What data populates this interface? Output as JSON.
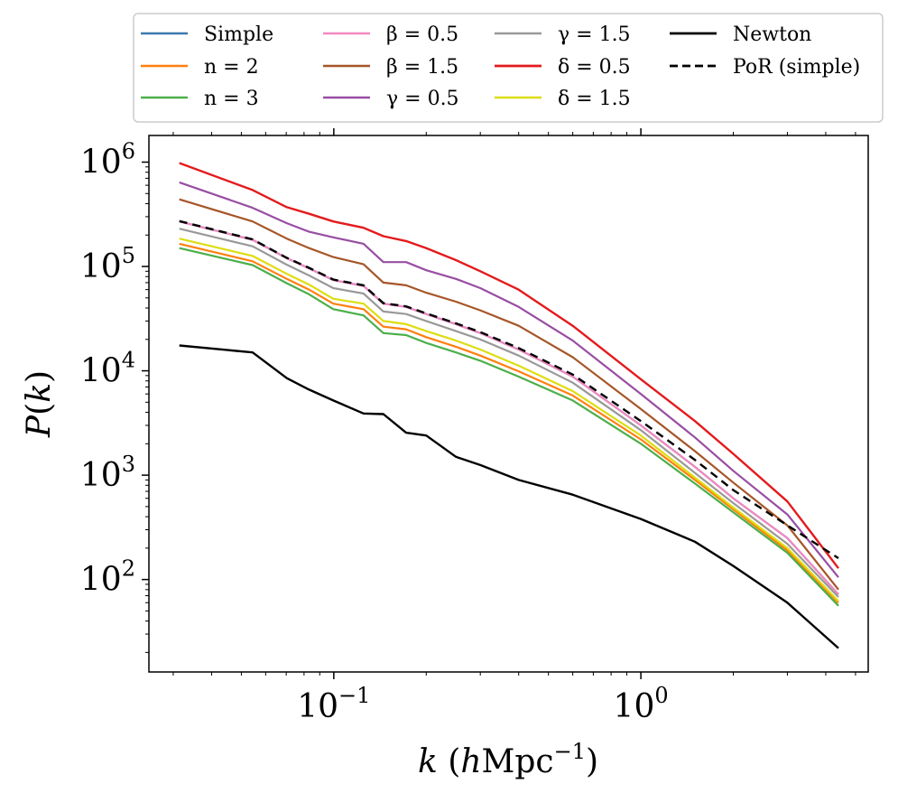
{
  "chart_data": {
    "type": "line",
    "xlabel": "k (hMpc⁻¹)",
    "ylabel": "P(k)",
    "x_scale": "log",
    "y_scale": "log",
    "xlim": [
      0.025,
      5.5
    ],
    "ylim": [
      13,
      1800000
    ],
    "grid": false,
    "legend_position": "top",
    "x_ticks": [
      {
        "value": 0.1,
        "base": "10",
        "exp": "−1"
      },
      {
        "value": 1,
        "base": "10",
        "exp": "0"
      }
    ],
    "y_ticks": [
      {
        "value": 100,
        "base": "10",
        "exp": "2"
      },
      {
        "value": 1000,
        "base": "10",
        "exp": "3"
      },
      {
        "value": 10000,
        "base": "10",
        "exp": "4"
      },
      {
        "value": 100000,
        "base": "10",
        "exp": "5"
      },
      {
        "value": 1000000,
        "base": "10",
        "exp": "6"
      }
    ],
    "x": [
      0.0314,
      0.0544,
      0.0703,
      0.0831,
      0.0996,
      0.125,
      0.145,
      0.172,
      0.2,
      0.25,
      0.3,
      0.4,
      0.6,
      1.0,
      1.5,
      2.0,
      3.0,
      4.4
    ],
    "series": [
      {
        "name": "Simple",
        "label": "Simple",
        "color": "#3a78b0",
        "dash": "",
        "width": 2.2,
        "values": [
          270000,
          180000,
          120000,
          96000,
          74000,
          65000,
          44000,
          41000,
          35000,
          28000,
          23000,
          16000,
          8800,
          3000,
          1200,
          600,
          250,
          72
        ]
      },
      {
        "name": "n = 2",
        "label": "n = 2",
        "color": "#ff7f0e",
        "dash": "",
        "width": 2.2,
        "values": [
          165000,
          112000,
          76000,
          60000,
          44000,
          39000,
          26500,
          25000,
          21000,
          17000,
          14000,
          9900,
          5800,
          2200,
          900,
          470,
          190,
          60
        ]
      },
      {
        "name": "n = 3",
        "label": "n = 3",
        "color": "#4caf4a",
        "dash": "",
        "width": 2.2,
        "values": [
          150000,
          103000,
          69000,
          54000,
          39000,
          34000,
          23000,
          22000,
          18500,
          15000,
          12500,
          8800,
          5200,
          2000,
          830,
          440,
          180,
          56
        ]
      },
      {
        "name": "β = 0.5",
        "label": "β = 0.5",
        "color": "#f288c0",
        "dash": "",
        "width": 2.2,
        "values": [
          270000,
          180000,
          120000,
          96000,
          74000,
          65000,
          44000,
          41000,
          35000,
          28000,
          23000,
          16000,
          8800,
          3000,
          1200,
          600,
          250,
          72
        ]
      },
      {
        "name": "β = 1.5",
        "label": "β = 1.5",
        "color": "#a65628",
        "dash": "",
        "width": 2.2,
        "values": [
          440000,
          270000,
          185000,
          150000,
          123000,
          105000,
          70000,
          66000,
          56000,
          46000,
          38000,
          27000,
          13500,
          4300,
          1700,
          850,
          330,
          80
        ]
      },
      {
        "name": "γ = 0.5",
        "label": "γ = 0.5",
        "color": "#984ea3",
        "dash": "",
        "width": 2.2,
        "values": [
          640000,
          365000,
          260000,
          215000,
          190000,
          165000,
          110000,
          110000,
          92000,
          76000,
          62000,
          41000,
          19500,
          6000,
          2300,
          1100,
          420,
          105
        ]
      },
      {
        "name": "γ = 1.5",
        "label": "γ = 1.5",
        "color": "#999999",
        "dash": "",
        "width": 2.2,
        "values": [
          230000,
          156000,
          104000,
          82000,
          62000,
          55000,
          37000,
          35000,
          30000,
          24000,
          20000,
          14000,
          7700,
          2700,
          1050,
          540,
          220,
          68
        ]
      },
      {
        "name": "δ = 0.5",
        "label": "δ = 0.5",
        "color": "#e41a1c",
        "dash": "",
        "width": 2.4,
        "values": [
          980000,
          540000,
          370000,
          320000,
          270000,
          235000,
          195000,
          175000,
          150000,
          115000,
          90000,
          60000,
          27000,
          8300,
          3300,
          1600,
          560,
          128
        ]
      },
      {
        "name": "δ = 1.5",
        "label": "δ = 1.5",
        "color": "#dddd11",
        "dash": "",
        "width": 2.2,
        "values": [
          185000,
          126000,
          85000,
          67000,
          49000,
          44000,
          30000,
          28000,
          24000,
          19500,
          16000,
          11200,
          6400,
          2400,
          950,
          490,
          200,
          62
        ]
      },
      {
        "name": "Newton",
        "label": "Newton",
        "color": "#000000",
        "dash": "",
        "width": 2.4,
        "values": [
          17500,
          15000,
          8500,
          6600,
          5200,
          3900,
          3850,
          2550,
          2400,
          1500,
          1250,
          900,
          650,
          380,
          230,
          135,
          60,
          22
        ]
      },
      {
        "name": "PoR (simple)",
        "label": "PoR (simple)",
        "color": "#000000",
        "dash": "9,6",
        "width": 2.4,
        "values": [
          272000,
          182000,
          121000,
          97000,
          75000,
          66000,
          44500,
          41500,
          35500,
          28500,
          23500,
          16500,
          9200,
          3300,
          1400,
          720,
          330,
          160
        ]
      }
    ]
  }
}
